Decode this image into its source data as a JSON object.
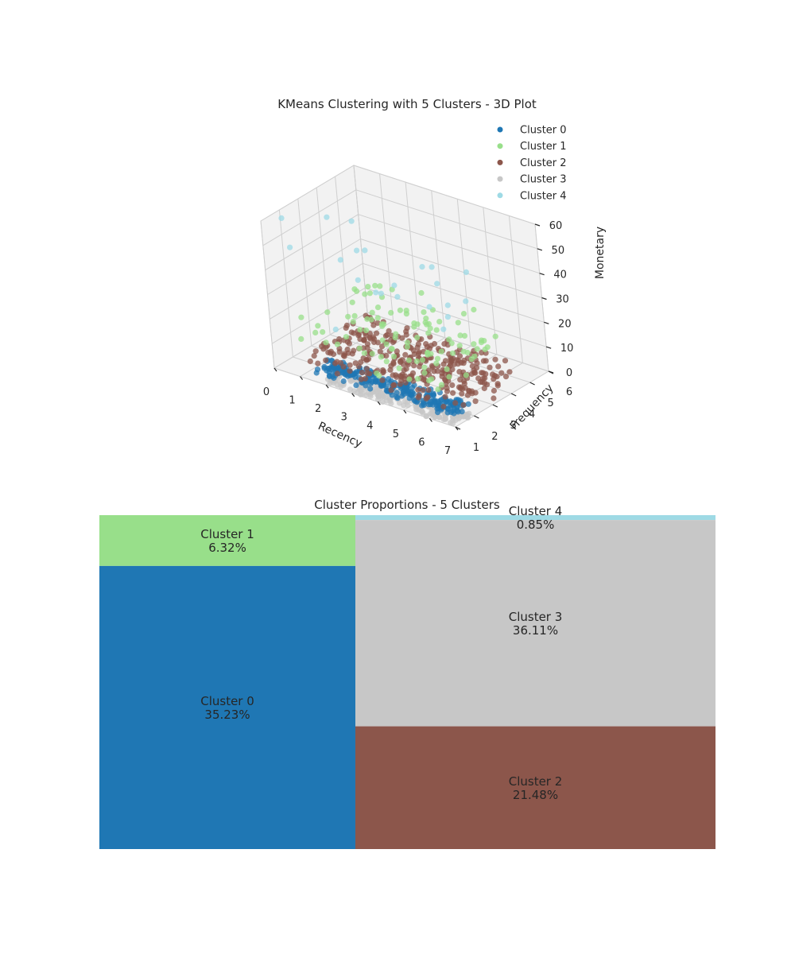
{
  "chart_data": [
    {
      "type": "scatter",
      "projection": "3d",
      "title": "KMeans Clustering with 5 Clusters - 3D Plot",
      "xlabel": "Recency",
      "ylabel": "Frequency",
      "zlabel": "Monetary",
      "x_ticks": [
        "0",
        "1",
        "2",
        "3",
        "4",
        "5",
        "6",
        "7"
      ],
      "y_ticks": [
        "1",
        "2",
        "3",
        "4",
        "5",
        "6"
      ],
      "z_ticks": [
        "0",
        "10",
        "20",
        "30",
        "40",
        "50",
        "60"
      ],
      "xlim": [
        0,
        7
      ],
      "ylim": [
        1,
        6
      ],
      "zlim": [
        0,
        60
      ],
      "grid": true,
      "legend_position": "top-right",
      "series": [
        {
          "name": "Cluster 0",
          "color": "#1f77b4"
        },
        {
          "name": "Cluster 1",
          "color": "#98df8a"
        },
        {
          "name": "Cluster 2",
          "color": "#8c564b"
        },
        {
          "name": "Cluster 3",
          "color": "#c7c7c7"
        },
        {
          "name": "Cluster 4",
          "color": "#9edae5"
        }
      ]
    },
    {
      "type": "treemap",
      "title": "Cluster Proportions - 5 Clusters",
      "items": [
        {
          "label": "Cluster 1",
          "percent_label": "6.32%",
          "value": 6.32,
          "color": "#98df8a"
        },
        {
          "label": "Cluster 0",
          "percent_label": "35.23%",
          "value": 35.23,
          "color": "#1f77b4"
        },
        {
          "label": "Cluster 4",
          "percent_label": "0.85%",
          "value": 0.85,
          "color": "#9edae5"
        },
        {
          "label": "Cluster 3",
          "percent_label": "36.11%",
          "value": 36.11,
          "color": "#c7c7c7"
        },
        {
          "label": "Cluster 2",
          "percent_label": "21.48%",
          "value": 21.48,
          "color": "#8c564b"
        }
      ]
    }
  ]
}
